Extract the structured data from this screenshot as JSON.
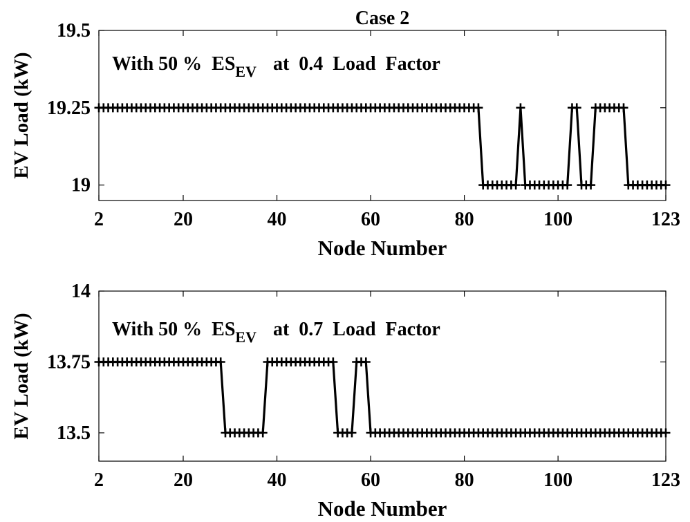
{
  "chart_data": [
    {
      "type": "line",
      "title": "Case 2",
      "xlabel": "Node Number",
      "ylabel": "EV Load (kW)",
      "annotation": {
        "prefix": "With 50 %  ES",
        "subscript": "EV",
        "suffix": "at  0.4  Load  Factor"
      },
      "xlim": [
        2,
        123
      ],
      "ylim": [
        18.95,
        19.5
      ],
      "xticks": [
        2,
        20,
        40,
        60,
        80,
        100,
        123
      ],
      "xtick_labels": [
        "2",
        "20",
        "40",
        "60",
        "80",
        "100",
        "123"
      ],
      "yticks": [
        19,
        19.25,
        19.5
      ],
      "ytick_labels": [
        "19",
        "19.25",
        "19.5"
      ],
      "marker": "+",
      "color": "#000000",
      "segments": [
        {
          "from": 2,
          "to": 83,
          "value": 19.25
        },
        {
          "from": 84,
          "to": 91,
          "value": 19
        },
        {
          "from": 92,
          "to": 92,
          "value": 19.25
        },
        {
          "from": 93,
          "to": 102,
          "value": 19
        },
        {
          "from": 103,
          "to": 104,
          "value": 19.25
        },
        {
          "from": 105,
          "to": 107,
          "value": 19
        },
        {
          "from": 108,
          "to": 114,
          "value": 19.25
        },
        {
          "from": 115,
          "to": 123,
          "value": 19
        }
      ]
    },
    {
      "type": "line",
      "title": "",
      "xlabel": "Node Number",
      "ylabel": "EV Load (kW)",
      "annotation": {
        "prefix": "With 50 %  ES",
        "subscript": "EV",
        "suffix": "at  0.7  Load  Factor"
      },
      "xlim": [
        2,
        123
      ],
      "ylim": [
        13.4,
        14
      ],
      "xticks": [
        2,
        20,
        40,
        60,
        80,
        100,
        123
      ],
      "xtick_labels": [
        "2",
        "20",
        "40",
        "60",
        "80",
        "100",
        "123"
      ],
      "yticks": [
        13.5,
        13.75,
        14
      ],
      "ytick_labels": [
        "13.5",
        "13.75",
        "14"
      ],
      "marker": "+",
      "color": "#000000",
      "segments": [
        {
          "from": 2,
          "to": 28,
          "value": 13.75
        },
        {
          "from": 29,
          "to": 37,
          "value": 13.5
        },
        {
          "from": 38,
          "to": 52,
          "value": 13.75
        },
        {
          "from": 53,
          "to": 56,
          "value": 13.5
        },
        {
          "from": 57,
          "to": 59,
          "value": 13.75
        },
        {
          "from": 60,
          "to": 123,
          "value": 13.5
        }
      ]
    }
  ]
}
